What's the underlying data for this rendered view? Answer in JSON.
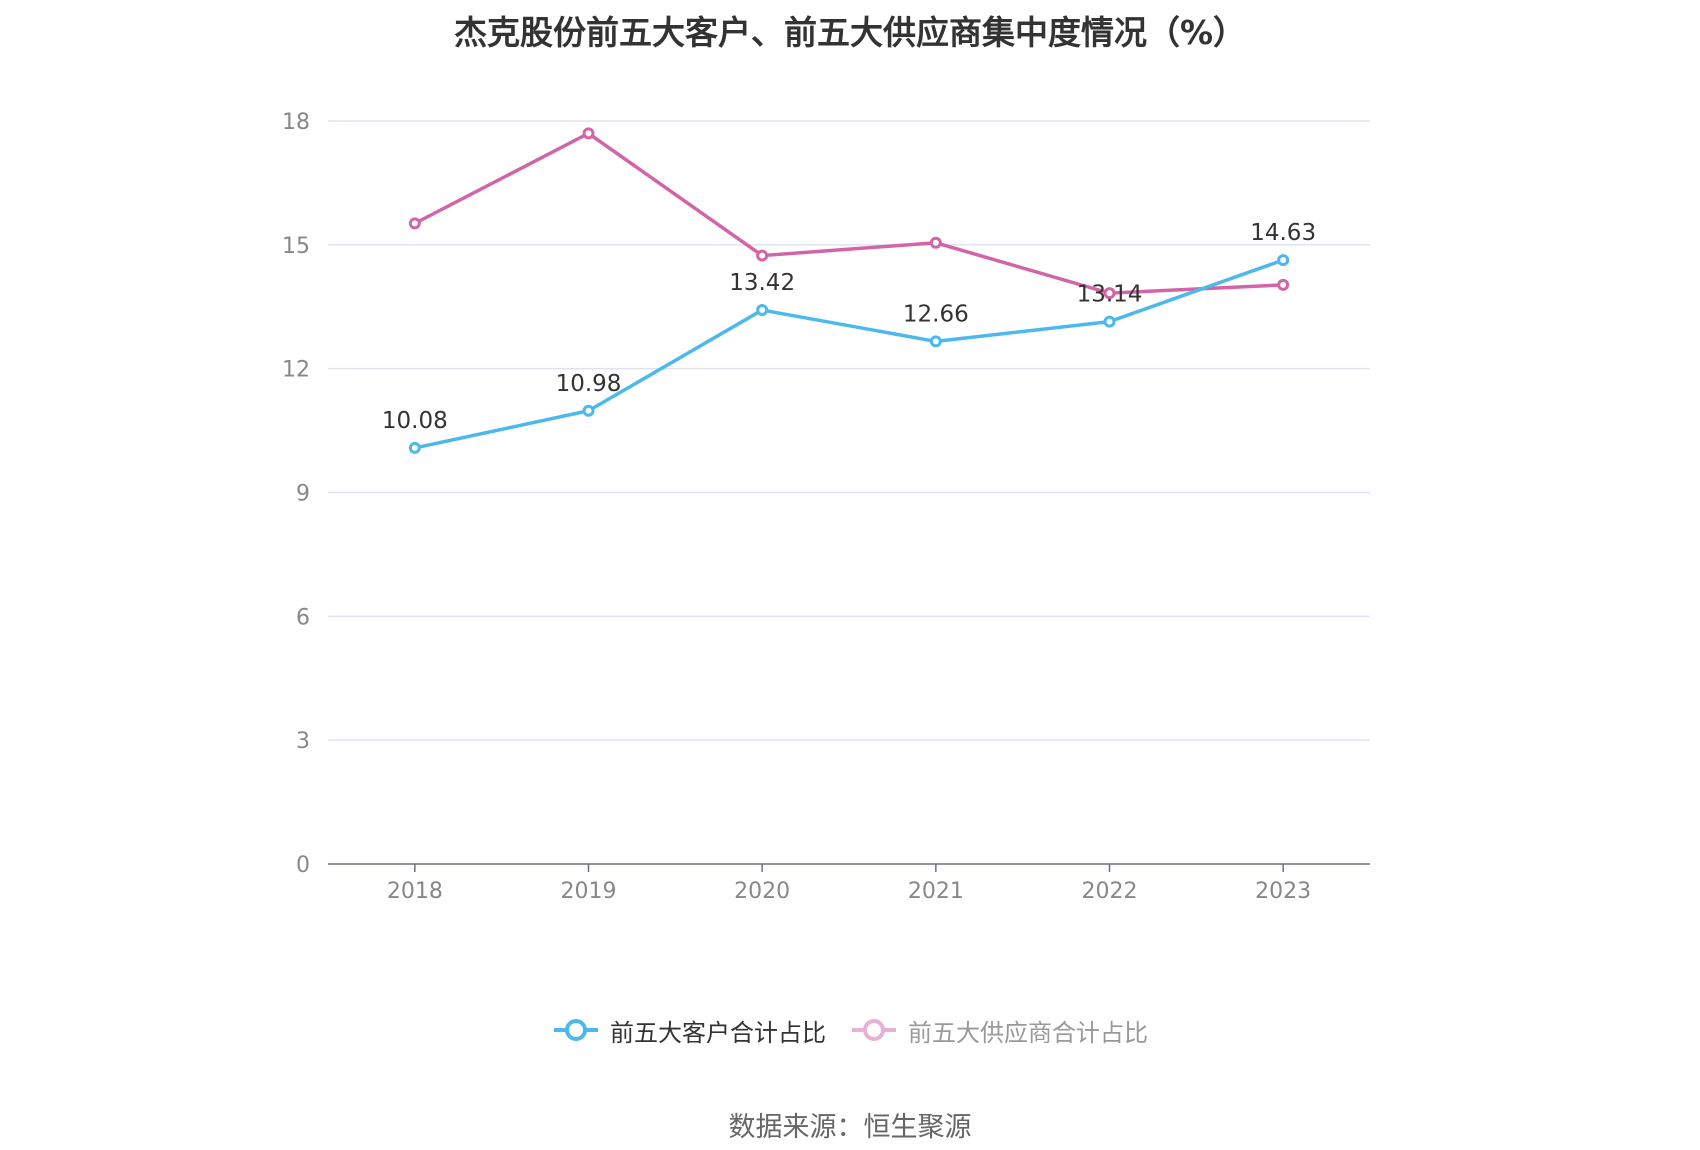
{
  "chart_data": {
    "type": "line",
    "title": "杰克股份前五大客户、前五大供应商集中度情况（%）",
    "x": [
      "2018",
      "2019",
      "2020",
      "2021",
      "2022",
      "2023"
    ],
    "ylim": [
      0,
      18
    ],
    "yticks": [
      0,
      3,
      6,
      9,
      12,
      15,
      18
    ],
    "grid": true,
    "legend_position": "bottom",
    "series": [
      {
        "name": "前五大客户合计占比",
        "values": [
          10.08,
          10.98,
          13.42,
          12.66,
          13.14,
          14.63
        ],
        "color": "#4db8ec",
        "labels_shown": true,
        "legend_dimmed": false
      },
      {
        "name": "前五大供应商合计占比",
        "values": [
          15.52,
          17.7,
          14.74,
          15.05,
          13.83,
          14.03
        ],
        "color": "#d264a8",
        "labels_shown": false,
        "legend_dimmed": true
      }
    ]
  },
  "source": "数据来源：恒生聚源"
}
